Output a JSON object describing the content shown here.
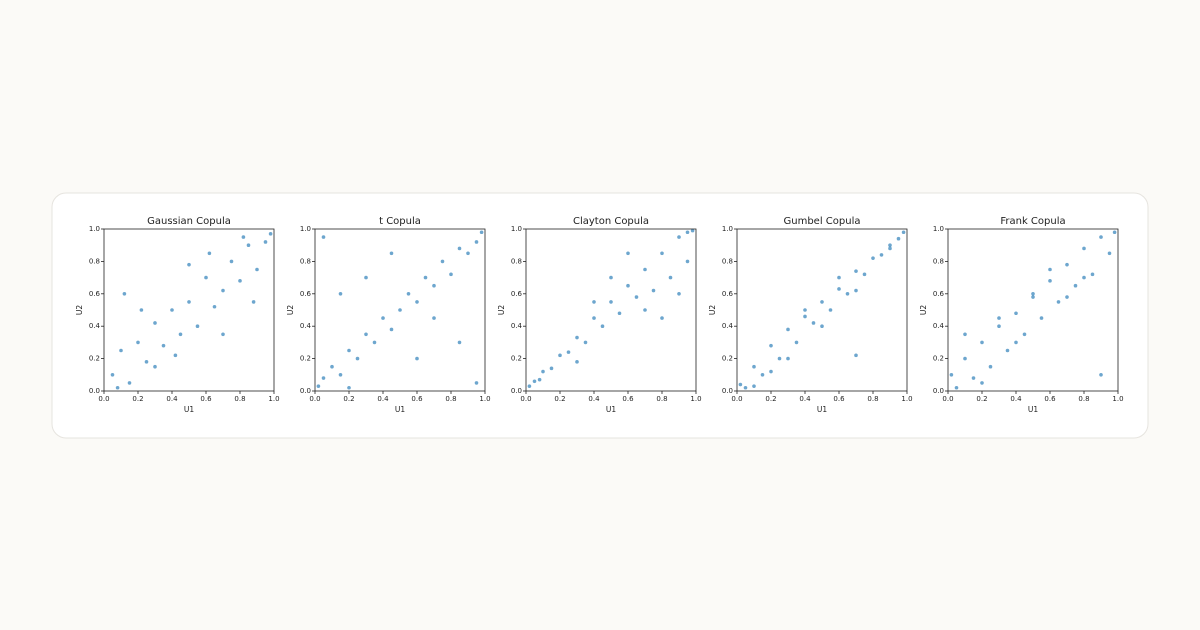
{
  "chart_data": [
    {
      "type": "scatter",
      "title": "Gaussian Copula",
      "x_label": "U1",
      "y_label": "U2",
      "color": "#1f77b4",
      "x": [
        0.05,
        0.1,
        0.15,
        0.2,
        0.25,
        0.3,
        0.35,
        0.4,
        0.45,
        0.5,
        0.55,
        0.6,
        0.65,
        0.7,
        0.75,
        0.8,
        0.85,
        0.9,
        0.95,
        0.98,
        0.12,
        0.3,
        0.5,
        0.7,
        0.88,
        0.22,
        0.42,
        0.62,
        0.82,
        0.08
      ],
      "y": [
        0.1,
        0.25,
        0.05,
        0.3,
        0.18,
        0.42,
        0.28,
        0.5,
        0.35,
        0.55,
        0.4,
        0.7,
        0.52,
        0.62,
        0.8,
        0.68,
        0.9,
        0.75,
        0.92,
        0.97,
        0.6,
        0.15,
        0.78,
        0.35,
        0.55,
        0.5,
        0.22,
        0.85,
        0.95,
        0.02
      ],
      "xlim": [
        0,
        1
      ],
      "ylim": [
        0,
        1
      ],
      "xticks": [
        {
          "value": 0,
          "label": "0.0"
        },
        0.2,
        0.4,
        0.6,
        0.8,
        {
          "value": 1,
          "label": "1.0"
        }
      ],
      "yticks": [
        {
          "value": 0,
          "label": "0.0"
        },
        0.2,
        0.4,
        0.6,
        0.8,
        {
          "value": 1,
          "label": "1.0"
        }
      ]
    },
    {
      "type": "scatter",
      "title": "t Copula",
      "x_label": "U1",
      "y_label": "U2",
      "color": "#1f77b4",
      "x": [
        0.02,
        0.05,
        0.1,
        0.15,
        0.2,
        0.25,
        0.3,
        0.35,
        0.4,
        0.45,
        0.5,
        0.55,
        0.6,
        0.65,
        0.7,
        0.75,
        0.8,
        0.85,
        0.9,
        0.95,
        0.98,
        0.05,
        0.95,
        0.15,
        0.85,
        0.3,
        0.6,
        0.45,
        0.7,
        0.2
      ],
      "y": [
        0.03,
        0.08,
        0.15,
        0.1,
        0.25,
        0.2,
        0.35,
        0.3,
        0.45,
        0.38,
        0.5,
        0.6,
        0.55,
        0.7,
        0.65,
        0.8,
        0.72,
        0.88,
        0.85,
        0.92,
        0.98,
        0.95,
        0.05,
        0.6,
        0.3,
        0.7,
        0.2,
        0.85,
        0.45,
        0.02
      ],
      "xlim": [
        0,
        1
      ],
      "ylim": [
        0,
        1
      ],
      "xticks": [
        {
          "value": 0,
          "label": "0.0"
        },
        0.2,
        0.4,
        0.6,
        0.8,
        {
          "value": 1,
          "label": "1.0"
        }
      ],
      "yticks": [
        {
          "value": 0,
          "label": "0.0"
        },
        0.2,
        0.4,
        0.6,
        0.8,
        {
          "value": 1,
          "label": "1.0"
        }
      ]
    },
    {
      "type": "scatter",
      "title": "Clayton Copula",
      "x_label": "U1",
      "y_label": "U2",
      "color": "#1f77b4",
      "x": [
        0.02,
        0.05,
        0.08,
        0.1,
        0.15,
        0.2,
        0.25,
        0.3,
        0.35,
        0.4,
        0.45,
        0.5,
        0.55,
        0.6,
        0.65,
        0.7,
        0.75,
        0.8,
        0.85,
        0.9,
        0.95,
        0.98,
        0.3,
        0.5,
        0.7,
        0.9,
        0.6,
        0.8,
        0.4,
        0.95
      ],
      "y": [
        0.03,
        0.06,
        0.07,
        0.12,
        0.14,
        0.22,
        0.24,
        0.33,
        0.3,
        0.45,
        0.4,
        0.55,
        0.48,
        0.65,
        0.58,
        0.75,
        0.62,
        0.85,
        0.7,
        0.95,
        0.8,
        0.99,
        0.18,
        0.7,
        0.5,
        0.6,
        0.85,
        0.45,
        0.55,
        0.98
      ],
      "xlim": [
        0,
        1
      ],
      "ylim": [
        0,
        1
      ],
      "xticks": [
        {
          "value": 0,
          "label": "0.0"
        },
        0.2,
        0.4,
        0.6,
        0.8,
        {
          "value": 1,
          "label": "1.0"
        }
      ],
      "yticks": [
        {
          "value": 0,
          "label": "0.0"
        },
        0.2,
        0.4,
        0.6,
        0.8,
        {
          "value": 1,
          "label": "1.0"
        }
      ]
    },
    {
      "type": "scatter",
      "title": "Gumbel Copula",
      "x_label": "U1",
      "y_label": "U2",
      "color": "#1f77b4",
      "x": [
        0.02,
        0.05,
        0.1,
        0.15,
        0.2,
        0.25,
        0.3,
        0.35,
        0.4,
        0.45,
        0.5,
        0.55,
        0.6,
        0.65,
        0.7,
        0.75,
        0.8,
        0.85,
        0.9,
        0.95,
        0.98,
        0.1,
        0.3,
        0.5,
        0.7,
        0.9,
        0.2,
        0.4,
        0.6,
        0.7
      ],
      "y": [
        0.04,
        0.02,
        0.15,
        0.1,
        0.28,
        0.2,
        0.38,
        0.3,
        0.46,
        0.42,
        0.55,
        0.5,
        0.63,
        0.6,
        0.74,
        0.72,
        0.82,
        0.84,
        0.9,
        0.94,
        0.98,
        0.03,
        0.2,
        0.4,
        0.62,
        0.88,
        0.12,
        0.5,
        0.7,
        0.22
      ],
      "xlim": [
        0,
        1
      ],
      "ylim": [
        0,
        1
      ],
      "xticks": [
        {
          "value": 0,
          "label": "0.0"
        },
        0.2,
        0.4,
        0.6,
        0.8,
        {
          "value": 1,
          "label": "1.0"
        }
      ],
      "yticks": [
        {
          "value": 0,
          "label": "0.0"
        },
        0.2,
        0.4,
        0.6,
        0.8,
        {
          "value": 1,
          "label": "1.0"
        }
      ]
    },
    {
      "type": "scatter",
      "title": "Frank Copula",
      "x_label": "U1",
      "y_label": "U2",
      "color": "#1f77b4",
      "x": [
        0.02,
        0.05,
        0.1,
        0.15,
        0.2,
        0.25,
        0.3,
        0.35,
        0.4,
        0.45,
        0.5,
        0.55,
        0.6,
        0.65,
        0.7,
        0.75,
        0.8,
        0.85,
        0.9,
        0.95,
        0.98,
        0.1,
        0.3,
        0.5,
        0.7,
        0.9,
        0.2,
        0.6,
        0.8,
        0.4
      ],
      "y": [
        0.1,
        0.02,
        0.2,
        0.08,
        0.3,
        0.15,
        0.4,
        0.25,
        0.48,
        0.35,
        0.58,
        0.45,
        0.68,
        0.55,
        0.78,
        0.65,
        0.88,
        0.72,
        0.95,
        0.85,
        0.98,
        0.35,
        0.45,
        0.6,
        0.58,
        0.1,
        0.05,
        0.75,
        0.7,
        0.3
      ],
      "xlim": [
        0,
        1
      ],
      "ylim": [
        0,
        1
      ],
      "xticks": [
        {
          "value": 0,
          "label": "0.0"
        },
        0.2,
        0.4,
        0.6,
        0.8,
        {
          "value": 1,
          "label": "1.0"
        }
      ],
      "yticks": [
        {
          "value": 0,
          "label": "0.0"
        },
        0.2,
        0.4,
        0.6,
        0.8,
        {
          "value": 1,
          "label": "1.0"
        }
      ]
    }
  ]
}
